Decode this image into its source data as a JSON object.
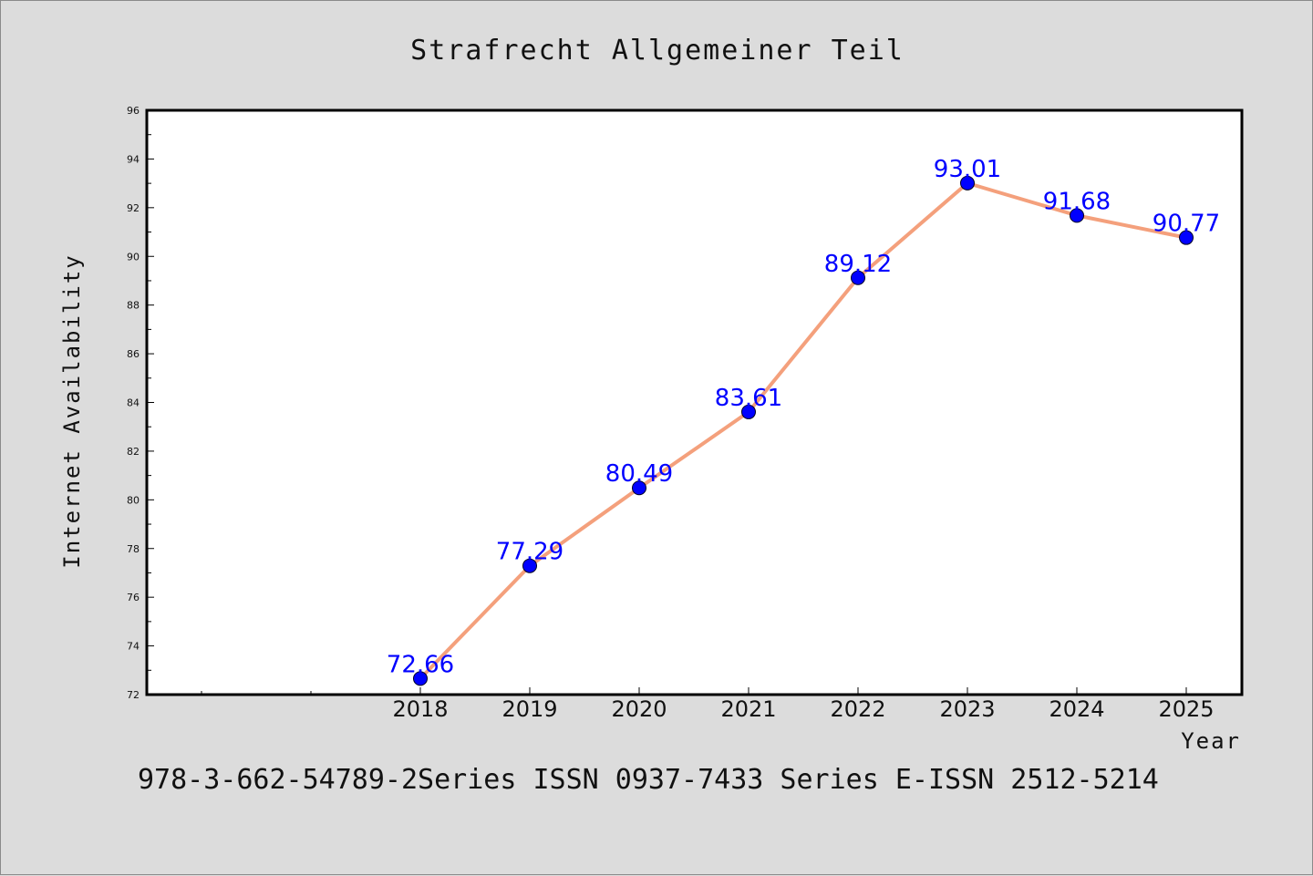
{
  "chart_data": {
    "type": "line",
    "title": "Strafrecht Allgemeiner Teil",
    "xlabel": "Year",
    "ylabel": "Internet Availability",
    "x": [
      "2018",
      "2019",
      "2020",
      "2021",
      "2022",
      "2023",
      "2024",
      "2025"
    ],
    "values": [
      72.66,
      77.29,
      80.49,
      83.61,
      89.12,
      93.01,
      91.68,
      90.77
    ],
    "data_labels": [
      "72.66",
      "77.29",
      "80.49",
      "83.61",
      "89.12",
      "93.01",
      "91.68",
      "90.77"
    ],
    "ylim": [
      72,
      96
    ],
    "yticks": [
      "72",
      "74",
      "76",
      "78",
      "80",
      "82",
      "84",
      "86",
      "88",
      "90",
      "92",
      "94",
      "96"
    ],
    "grid": false,
    "legend": "none",
    "colors": {
      "line": "#f4a07c",
      "marker": "#0000ff",
      "data_label": "#0000ff",
      "background": "#dcdcdc",
      "plot_background": "#ffffff"
    },
    "footer": "978-3-662-54789-2Series ISSN 0937-7433 Series E-ISSN 2512-5214"
  }
}
